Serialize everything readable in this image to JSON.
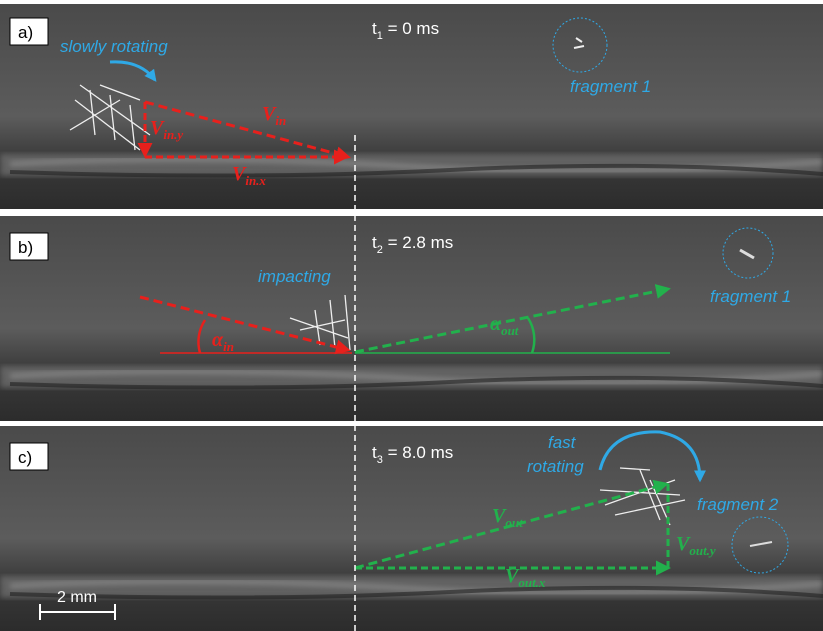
{
  "panels": [
    {
      "label": "a)",
      "time": {
        "base": "t",
        "sub": "1",
        "rest": " = 0 ms"
      },
      "annotations": {
        "motion": "slowly rotating",
        "fragment": "fragment 1"
      },
      "vectors": [
        {
          "main": "V",
          "sub": "in"
        },
        {
          "main": "V",
          "sub": "in.y"
        },
        {
          "main": "V",
          "sub": "in.x"
        }
      ]
    },
    {
      "label": "b)",
      "time": {
        "base": "t",
        "sub": "2",
        "rest": " = 2.8 ms"
      },
      "annotations": {
        "motion": "impacting",
        "fragment": "fragment 1"
      },
      "angles": [
        {
          "main": "α",
          "sub": "in"
        },
        {
          "main": "α",
          "sub": "out"
        }
      ]
    },
    {
      "label": "c)",
      "time": {
        "base": "t",
        "sub": "3",
        "rest": " = 8.0 ms"
      },
      "annotations": {
        "motion": [
          "fast",
          "rotating"
        ],
        "fragment": "fragment 2"
      },
      "vectors": [
        {
          "main": "V",
          "sub": "out"
        },
        {
          "main": "V",
          "sub": "out.y"
        },
        {
          "main": "V",
          "sub": "out.x"
        }
      ]
    }
  ],
  "scale_bar": "2 mm"
}
